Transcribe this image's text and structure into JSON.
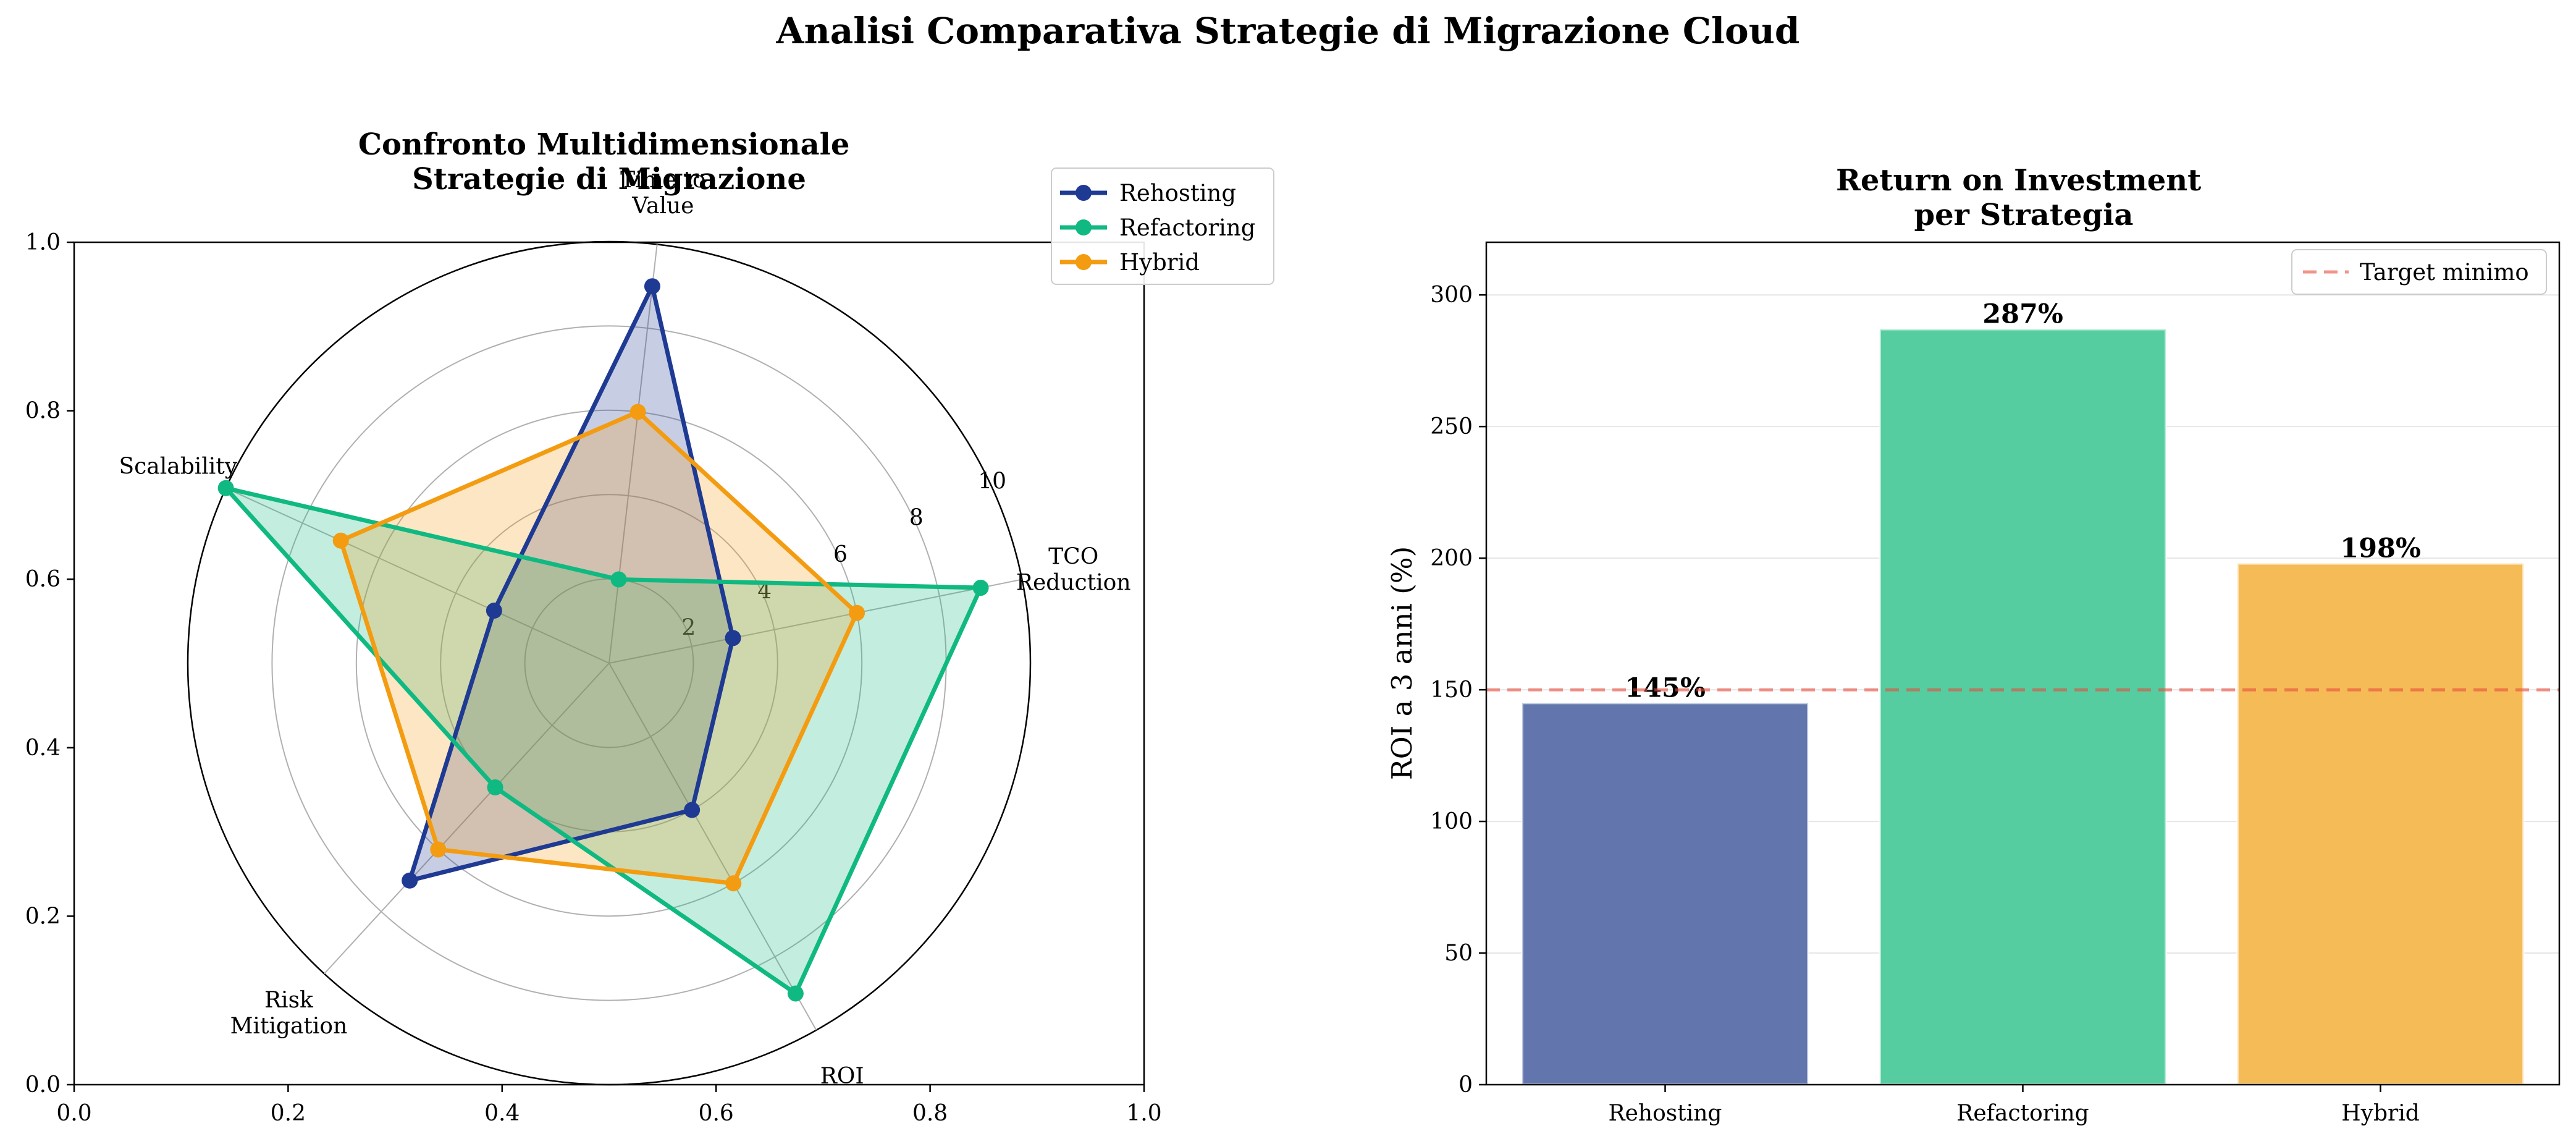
{
  "suptitle": "Analisi Comparativa Strategie di Migrazione Cloud",
  "colors": {
    "rehosting": "#1f3a93",
    "refactoring": "#10b981",
    "hybrid": "#f39c12",
    "target_line": "#e74c3c",
    "grid": "#b0b0b0",
    "bar_rehosting": "#6275ad",
    "bar_refactoring": "#55cda0",
    "bar_hybrid": "#f5bb56"
  },
  "chart_data": [
    {
      "type": "radar",
      "title": "Confronto Multidimensionale\nStrategie di Migrazione",
      "categories": [
        "TCO\nReduction",
        "Time to\nValue",
        "Scalability",
        "Risk\nMitigation",
        "ROI"
      ],
      "rlim": [
        0,
        10
      ],
      "rticks": [
        "2",
        "4",
        "6",
        "8",
        "10"
      ],
      "frame_xticks": [
        "0.0",
        "0.2",
        "0.4",
        "0.6",
        "0.8",
        "1.0"
      ],
      "frame_yticks": [
        "0.0",
        "0.2",
        "0.4",
        "0.6",
        "0.8",
        "1.0"
      ],
      "series": [
        {
          "name": "Rehosting",
          "key": "rehosting",
          "values": [
            3,
            9,
            3,
            7,
            4
          ]
        },
        {
          "name": "Refactoring",
          "key": "refactoring",
          "values": [
            9,
            2,
            10,
            4,
            9
          ]
        },
        {
          "name": "Hybrid",
          "key": "hybrid",
          "values": [
            6,
            6,
            7,
            6,
            6
          ]
        }
      ],
      "legend": "upper-right-outside"
    },
    {
      "type": "bar",
      "title": "Return on Investment\nper Strategia",
      "categories": [
        "Rehosting",
        "Refactoring",
        "Hybrid"
      ],
      "values": [
        145,
        287,
        198
      ],
      "value_labels": [
        "145%",
        "287%",
        "198%"
      ],
      "ylabel": "ROI a 3 anni (%)",
      "ylim": [
        0,
        320
      ],
      "yticks": [
        0,
        50,
        100,
        150,
        200,
        250,
        300
      ],
      "target": {
        "value": 150,
        "label": "Target minimo"
      },
      "grid": "y",
      "legend": "upper-right"
    }
  ]
}
